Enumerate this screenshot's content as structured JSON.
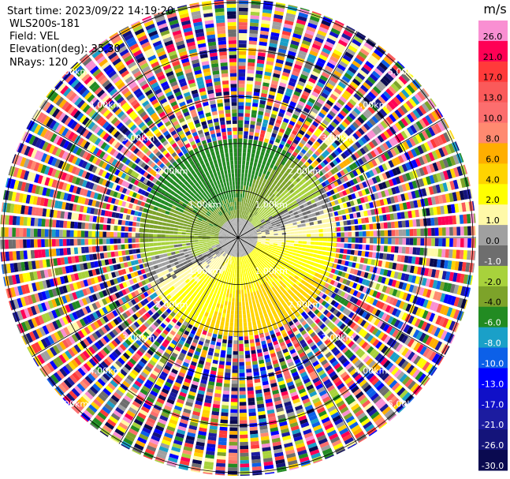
{
  "header": {
    "start_time": "Start time: 2023/09/22 14:19:20",
    "instrument": "WLS200s-181",
    "field": "Field: VEL",
    "elevation": "Elevation(deg): 35.30",
    "nrays": "NRays: 120"
  },
  "chart_data": {
    "type": "heatmap",
    "projection": "polar-ppi",
    "field": "VEL",
    "n_rays": 120,
    "range_rings_km": [
      1.0,
      2.0,
      3.0,
      4.0,
      5.0
    ],
    "range_ring_labels": [
      "1.00km",
      "2.00km",
      "3.00km",
      "4.00km",
      "5.00km"
    ],
    "max_range_km": 5.0,
    "spoke_azimuths_deg": [
      0,
      30,
      60,
      90,
      120,
      150,
      180,
      210,
      240,
      270,
      300,
      330
    ],
    "valid_data_range_km": 2.1,
    "colorbar": {
      "unit": "m/s",
      "bins": [
        {
          "label": "26.0",
          "color": "#f98fd2"
        },
        {
          "label": "21.0",
          "color": "#ff0055"
        },
        {
          "label": "17.0",
          "color": "#ff3a3a"
        },
        {
          "label": "13.0",
          "color": "#fa5a5a"
        },
        {
          "label": "10.0",
          "color": "#fc6e6e"
        },
        {
          "label": "8.0",
          "color": "#ff8a70"
        },
        {
          "label": "6.0",
          "color": "#ffae00"
        },
        {
          "label": "4.0",
          "color": "#ffd400"
        },
        {
          "label": "2.0",
          "color": "#ffff00"
        },
        {
          "label": "1.0",
          "color": "#fff9a8"
        },
        {
          "label": "0.0",
          "color": "#a0a0a0"
        },
        {
          "label": "-1.0",
          "color": "#6e6e6e"
        },
        {
          "label": "-2.0",
          "color": "#a8d23c"
        },
        {
          "label": "-4.0",
          "color": "#7da32a"
        },
        {
          "label": "-6.0",
          "color": "#228b22"
        },
        {
          "label": "-8.0",
          "color": "#1aa0c8"
        },
        {
          "label": "-10.0",
          "color": "#0c60e8"
        },
        {
          "label": "-13.0",
          "color": "#0000ff"
        },
        {
          "label": "-17.0",
          "color": "#1010c8"
        },
        {
          "label": "-21.0",
          "color": "#1c1ca0"
        },
        {
          "label": "-26.0",
          "color": "#14147a"
        },
        {
          "label": "-30.0",
          "color": "#0a0a50"
        }
      ]
    }
  }
}
